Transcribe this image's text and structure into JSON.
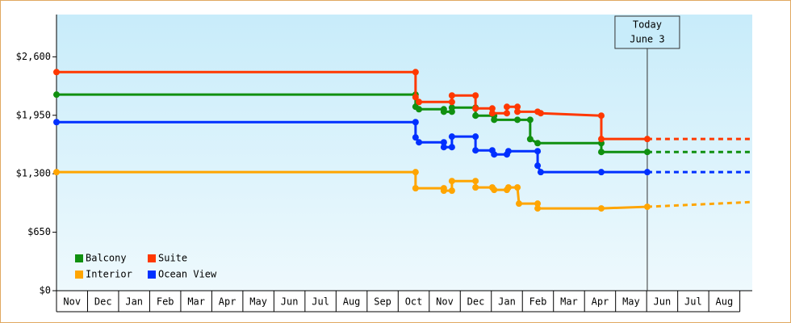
{
  "chart_data": {
    "type": "line",
    "ylim": [
      0,
      3070
    ],
    "yticks": [
      {
        "value": 0,
        "label": "$0"
      },
      {
        "value": 650,
        "label": "$650"
      },
      {
        "value": 1300,
        "label": "$1,300"
      },
      {
        "value": 1950,
        "label": "$1,950"
      },
      {
        "value": 2600,
        "label": "$2,600"
      }
    ],
    "xlim": [
      0,
      22.4
    ],
    "xticks": [
      {
        "value": 0,
        "label": "Nov"
      },
      {
        "value": 1,
        "label": "Dec"
      },
      {
        "value": 2,
        "label": "Jan"
      },
      {
        "value": 3,
        "label": "Feb"
      },
      {
        "value": 4,
        "label": "Mar"
      },
      {
        "value": 5,
        "label": "Apr"
      },
      {
        "value": 6,
        "label": "May"
      },
      {
        "value": 7,
        "label": "Jun"
      },
      {
        "value": 8,
        "label": "Jul"
      },
      {
        "value": 9,
        "label": "Aug"
      },
      {
        "value": 10,
        "label": "Sep"
      },
      {
        "value": 11,
        "label": "Oct"
      },
      {
        "value": 12,
        "label": "Nov"
      },
      {
        "value": 13,
        "label": "Dec"
      },
      {
        "value": 14,
        "label": "Jan"
      },
      {
        "value": 15,
        "label": "Feb"
      },
      {
        "value": 16,
        "label": "Mar"
      },
      {
        "value": 17,
        "label": "Apr"
      },
      {
        "value": 18,
        "label": "May"
      },
      {
        "value": 19,
        "label": "Jun"
      },
      {
        "value": 20,
        "label": "Jul"
      },
      {
        "value": 21,
        "label": "Aug"
      }
    ],
    "annotation": {
      "x": 19.02,
      "lines": [
        "Today",
        "June 3"
      ]
    },
    "series": [
      {
        "name": "Balcony",
        "color": "#109010",
        "x": [
          0,
          11.56,
          11.56,
          11.67,
          12.47,
          12.47,
          12.73,
          12.73,
          13.49,
          13.49,
          14.09,
          14.09,
          14.84,
          15.25,
          15.25,
          15.49,
          17.54,
          17.54,
          19.02
        ],
        "values": [
          2180,
          2180,
          2045,
          2017,
          2017,
          1990,
          1990,
          2035,
          2035,
          1946,
          1946,
          1900,
          1900,
          1900,
          1685,
          1640,
          1640,
          1542,
          1542
        ],
        "projection": 1542
      },
      {
        "name": "Suite",
        "color": "#ff3800",
        "x": [
          0,
          11.56,
          11.56,
          11.67,
          12.73,
          12.73,
          13.49,
          13.49,
          14.03,
          14.03,
          14.5,
          14.5,
          14.84,
          14.84,
          15.49,
          15.59,
          17.54,
          17.54,
          19.02
        ],
        "values": [
          2430,
          2430,
          2152,
          2098,
          2098,
          2170,
          2170,
          2026,
          2026,
          1973,
          1973,
          2044,
          2044,
          1990,
          1990,
          1973,
          1946,
          1686,
          1686
        ],
        "projection": 1686
      },
      {
        "name": "Interior",
        "color": "#ffa500",
        "x": [
          0,
          11.56,
          11.56,
          12.47,
          12.47,
          12.73,
          12.73,
          13.49,
          13.49,
          14.03,
          14.09,
          14.5,
          14.55,
          14.84,
          14.89,
          15.49,
          15.49,
          17.54,
          19.02
        ],
        "values": [
          1318,
          1318,
          1139,
          1139,
          1112,
          1112,
          1219,
          1219,
          1148,
          1148,
          1121,
          1121,
          1148,
          1148,
          968,
          968,
          915,
          915,
          933
        ],
        "projection": 986
      },
      {
        "name": "Ocean View",
        "color": "#0030ff",
        "x": [
          0,
          11.56,
          11.56,
          11.67,
          12.47,
          12.47,
          12.73,
          12.73,
          13.49,
          13.49,
          14.03,
          14.09,
          14.5,
          14.55,
          15.49,
          15.49,
          15.59,
          17.54,
          19.02
        ],
        "values": [
          1874,
          1874,
          1704,
          1650,
          1650,
          1596,
          1596,
          1713,
          1713,
          1560,
          1560,
          1515,
          1515,
          1551,
          1551,
          1390,
          1318,
          1318,
          1318
        ],
        "projection": 1318
      }
    ]
  }
}
